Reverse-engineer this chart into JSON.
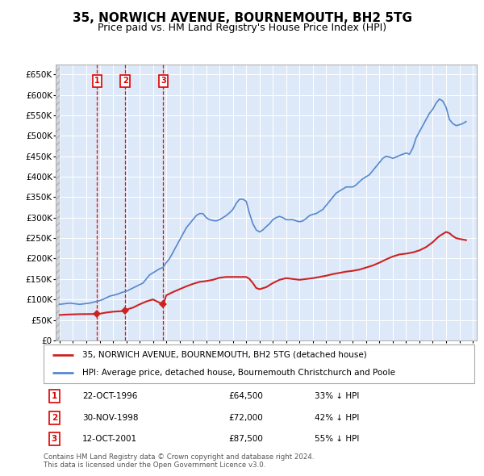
{
  "title": "35, NORWICH AVENUE, BOURNEMOUTH, BH2 5TG",
  "subtitle": "Price paid vs. HM Land Registry's House Price Index (HPI)",
  "title_fontsize": 11,
  "subtitle_fontsize": 9,
  "background_color": "#ffffff",
  "plot_bg_color": "#dde8f8",
  "grid_color": "#ffffff",
  "ylim": [
    0,
    675000
  ],
  "yticks": [
    0,
    50000,
    100000,
    150000,
    200000,
    250000,
    300000,
    350000,
    400000,
    450000,
    500000,
    550000,
    600000,
    650000
  ],
  "ytick_labels": [
    "£0",
    "£50K",
    "£100K",
    "£150K",
    "£200K",
    "£250K",
    "£300K",
    "£350K",
    "£400K",
    "£450K",
    "£500K",
    "£550K",
    "£600K",
    "£650K"
  ],
  "hpi_color": "#5588cc",
  "price_color": "#cc2222",
  "sale_marker_color": "#cc2222",
  "dashed_line_color": "#dd0000",
  "legend_label_price": "35, NORWICH AVENUE, BOURNEMOUTH, BH2 5TG (detached house)",
  "legend_label_hpi": "HPI: Average price, detached house, Bournemouth Christchurch and Poole",
  "footer_text": "Contains HM Land Registry data © Crown copyright and database right 2024.\nThis data is licensed under the Open Government Licence v3.0.",
  "sales": [
    {
      "num": 1,
      "date_x": 1996.81,
      "price": 64500,
      "label": "22-OCT-1996",
      "price_str": "£64,500",
      "pct": "33% ↓ HPI"
    },
    {
      "num": 2,
      "date_x": 1998.92,
      "price": 72000,
      "label": "30-NOV-1998",
      "price_str": "£72,000",
      "pct": "42% ↓ HPI"
    },
    {
      "num": 3,
      "date_x": 2001.78,
      "price": 87500,
      "label": "12-OCT-2001",
      "price_str": "£87,500",
      "pct": "55% ↓ HPI"
    }
  ],
  "hpi_data_x": [
    1994.0,
    1994.25,
    1994.5,
    1994.75,
    1995.0,
    1995.25,
    1995.5,
    1995.75,
    1996.0,
    1996.25,
    1996.5,
    1996.75,
    1997.0,
    1997.25,
    1997.5,
    1997.75,
    1998.0,
    1998.25,
    1998.5,
    1998.75,
    1999.0,
    1999.25,
    1999.5,
    1999.75,
    2000.0,
    2000.25,
    2000.5,
    2000.75,
    2001.0,
    2001.25,
    2001.5,
    2001.75,
    2002.0,
    2002.25,
    2002.5,
    2002.75,
    2003.0,
    2003.25,
    2003.5,
    2003.75,
    2004.0,
    2004.25,
    2004.5,
    2004.75,
    2005.0,
    2005.25,
    2005.5,
    2005.75,
    2006.0,
    2006.25,
    2006.5,
    2006.75,
    2007.0,
    2007.25,
    2007.5,
    2007.75,
    2008.0,
    2008.25,
    2008.5,
    2008.75,
    2009.0,
    2009.25,
    2009.5,
    2009.75,
    2010.0,
    2010.25,
    2010.5,
    2010.75,
    2011.0,
    2011.25,
    2011.5,
    2011.75,
    2012.0,
    2012.25,
    2012.5,
    2012.75,
    2013.0,
    2013.25,
    2013.5,
    2013.75,
    2014.0,
    2014.25,
    2014.5,
    2014.75,
    2015.0,
    2015.25,
    2015.5,
    2015.75,
    2016.0,
    2016.25,
    2016.5,
    2016.75,
    2017.0,
    2017.25,
    2017.5,
    2017.75,
    2018.0,
    2018.25,
    2018.5,
    2018.75,
    2019.0,
    2019.25,
    2019.5,
    2019.75,
    2020.0,
    2020.25,
    2020.5,
    2020.75,
    2021.0,
    2021.25,
    2021.5,
    2021.75,
    2022.0,
    2022.25,
    2022.5,
    2022.75,
    2023.0,
    2023.25,
    2023.5,
    2023.75,
    2024.0,
    2024.25,
    2024.5
  ],
  "hpi_data_y": [
    88000,
    89000,
    90000,
    91000,
    90000,
    89000,
    88000,
    89000,
    90000,
    91000,
    93000,
    95000,
    97000,
    100000,
    104000,
    108000,
    110000,
    112000,
    115000,
    118000,
    120000,
    124000,
    128000,
    132000,
    136000,
    140000,
    150000,
    160000,
    165000,
    170000,
    175000,
    178000,
    190000,
    200000,
    215000,
    230000,
    245000,
    260000,
    275000,
    285000,
    295000,
    305000,
    310000,
    310000,
    300000,
    295000,
    293000,
    292000,
    295000,
    300000,
    305000,
    312000,
    320000,
    335000,
    345000,
    345000,
    340000,
    310000,
    285000,
    270000,
    265000,
    270000,
    278000,
    285000,
    295000,
    300000,
    303000,
    300000,
    295000,
    295000,
    295000,
    292000,
    290000,
    292000,
    298000,
    305000,
    308000,
    310000,
    315000,
    320000,
    330000,
    340000,
    350000,
    360000,
    365000,
    370000,
    375000,
    375000,
    375000,
    380000,
    388000,
    395000,
    400000,
    405000,
    415000,
    425000,
    435000,
    445000,
    450000,
    448000,
    445000,
    448000,
    452000,
    455000,
    458000,
    455000,
    470000,
    495000,
    510000,
    525000,
    540000,
    555000,
    565000,
    580000,
    590000,
    585000,
    570000,
    540000,
    530000,
    525000,
    527000,
    530000,
    535000
  ],
  "price_data_x": [
    1994.0,
    1994.5,
    1995.0,
    1995.5,
    1996.0,
    1996.81,
    1997.0,
    1997.5,
    1998.0,
    1998.92,
    1999.0,
    1999.5,
    2000.0,
    2000.5,
    2001.0,
    2001.78,
    2002.0,
    2002.5,
    2003.0,
    2003.5,
    2004.0,
    2004.5,
    2005.0,
    2005.5,
    2006.0,
    2006.5,
    2007.0,
    2007.5,
    2008.0,
    2008.25,
    2008.5,
    2008.75,
    2009.0,
    2009.5,
    2010.0,
    2010.5,
    2011.0,
    2011.5,
    2012.0,
    2012.5,
    2013.0,
    2013.5,
    2014.0,
    2014.5,
    2015.0,
    2015.5,
    2016.0,
    2016.5,
    2017.0,
    2017.5,
    2018.0,
    2018.5,
    2019.0,
    2019.5,
    2020.0,
    2020.5,
    2021.0,
    2021.5,
    2022.0,
    2022.25,
    2022.5,
    2022.75,
    2023.0,
    2023.25,
    2023.5,
    2023.75,
    2024.0,
    2024.5
  ],
  "price_data_y": [
    62000,
    63000,
    63500,
    64000,
    64200,
    64500,
    65000,
    68000,
    70000,
    72000,
    75000,
    80000,
    88000,
    95000,
    100000,
    87500,
    110000,
    118000,
    125000,
    132000,
    138000,
    143000,
    145000,
    148000,
    153000,
    155000,
    155000,
    155000,
    155000,
    150000,
    140000,
    128000,
    125000,
    130000,
    140000,
    148000,
    152000,
    150000,
    148000,
    150000,
    152000,
    155000,
    158000,
    162000,
    165000,
    168000,
    170000,
    173000,
    178000,
    183000,
    190000,
    198000,
    205000,
    210000,
    212000,
    215000,
    220000,
    228000,
    240000,
    248000,
    255000,
    260000,
    265000,
    262000,
    255000,
    250000,
    248000,
    245000
  ],
  "xlim": [
    1993.7,
    2025.3
  ],
  "xticks": [
    1994,
    1995,
    1996,
    1997,
    1998,
    1999,
    2000,
    2001,
    2002,
    2003,
    2004,
    2005,
    2006,
    2007,
    2008,
    2009,
    2010,
    2011,
    2012,
    2013,
    2014,
    2015,
    2016,
    2017,
    2018,
    2019,
    2020,
    2021,
    2022,
    2023,
    2024,
    2025
  ]
}
